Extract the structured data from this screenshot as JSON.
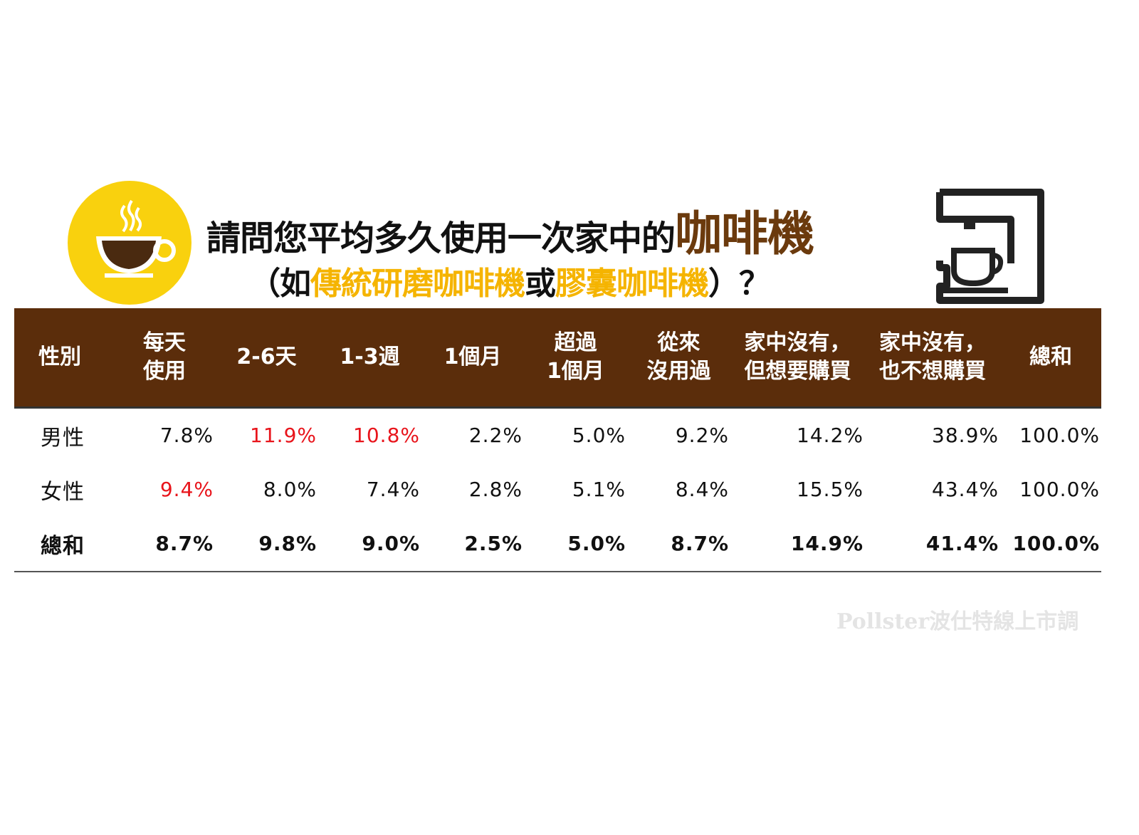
{
  "title": {
    "line1_prefix": "請問您平均多久使用一次家中的",
    "line1_brand": "咖啡機",
    "line2_open": "（如",
    "line2_hl1": "傳統研磨咖啡機",
    "line2_mid": "或",
    "line2_hl2": "膠囊咖啡機",
    "line2_close": "）？"
  },
  "icons": {
    "left": "coffee-cup-icon",
    "right": "coffee-machine-icon"
  },
  "colors": {
    "header_bg": "#5b2d0b",
    "badge_yellow": "#f9d10e",
    "highlight_yellow": "#f5b400",
    "brand_brown": "#6b3a0d",
    "emphasis_red": "#e8141b"
  },
  "chart_data": {
    "type": "table",
    "columns": [
      "性別",
      "每天\n使用",
      "2-6天",
      "1-3週",
      "1個月",
      "超過\n1個月",
      "從來\n沒用過",
      "家中沒有，\n但想要購買",
      "家中沒有，\n也不想購買",
      "總和"
    ],
    "rows": [
      {
        "label": "男性",
        "values": [
          "7.8%",
          "11.9%",
          "10.8%",
          "2.2%",
          "5.0%",
          "9.2%",
          "14.2%",
          "38.9%",
          "100.0%"
        ],
        "highlighted": [
          "11.9%",
          "10.8%"
        ]
      },
      {
        "label": "女性",
        "values": [
          "9.4%",
          "8.0%",
          "7.4%",
          "2.8%",
          "5.1%",
          "8.4%",
          "15.5%",
          "43.4%",
          "100.0%"
        ],
        "highlighted": [
          "9.4%"
        ]
      },
      {
        "label": "總和",
        "values": [
          "8.7%",
          "9.8%",
          "9.0%",
          "2.5%",
          "5.0%",
          "8.7%",
          "14.9%",
          "41.4%",
          "100.0%"
        ],
        "bold": true
      }
    ]
  },
  "watermark": "Pollster波仕特線上市調"
}
